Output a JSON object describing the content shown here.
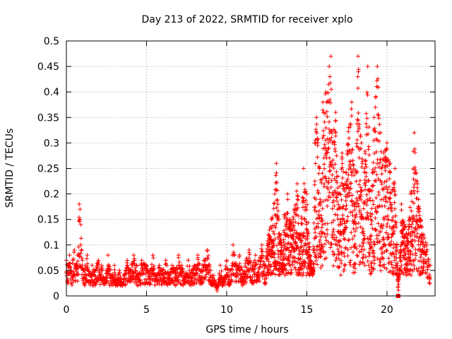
{
  "chart_data": {
    "type": "scatter",
    "title": "Day 213 of 2022, SRMTID for receiver xplo",
    "xlabel": "GPS time / hours",
    "ylabel": "SRMTID / TECUs",
    "xlim": [
      0,
      23
    ],
    "ylim": [
      0,
      0.5
    ],
    "xticks": [
      0,
      5,
      10,
      15,
      20
    ],
    "yticks": [
      0,
      0.05,
      0.1,
      0.15,
      0.2,
      0.25,
      0.3,
      0.35,
      0.4,
      0.45,
      0.5
    ],
    "xtick_labels": [
      "0",
      "5",
      "10",
      "15",
      "20"
    ],
    "ytick_labels": [
      "0",
      "0.05",
      "0.1",
      "0.15",
      "0.2",
      "0.25",
      "0.3",
      "0.35",
      "0.4",
      "0.45",
      "0.5"
    ],
    "grid": true,
    "marker": "plus",
    "color": "#ff0000",
    "envelope_note": "approximate upper envelope of the dense scatter, hours vs TECUs",
    "series": [
      {
        "name": "SRMTID",
        "points": [
          [
            0.0,
            0.07
          ],
          [
            0.1,
            0.06
          ],
          [
            0.2,
            0.08
          ],
          [
            0.3,
            0.05
          ],
          [
            0.4,
            0.07
          ],
          [
            0.5,
            0.09
          ],
          [
            0.6,
            0.06
          ],
          [
            0.7,
            0.08
          ],
          [
            0.8,
            0.18
          ],
          [
            0.85,
            0.17
          ],
          [
            0.9,
            0.14
          ],
          [
            1.0,
            0.07
          ],
          [
            1.1,
            0.05
          ],
          [
            1.2,
            0.06
          ],
          [
            1.3,
            0.08
          ],
          [
            1.5,
            0.04
          ],
          [
            1.6,
            0.06
          ],
          [
            1.8,
            0.05
          ],
          [
            2.0,
            0.07
          ],
          [
            2.1,
            0.04
          ],
          [
            2.2,
            0.06
          ],
          [
            2.4,
            0.03
          ],
          [
            2.5,
            0.05
          ],
          [
            2.6,
            0.08
          ],
          [
            2.8,
            0.04
          ],
          [
            3.0,
            0.06
          ],
          [
            3.1,
            0.03
          ],
          [
            3.3,
            0.05
          ],
          [
            3.5,
            0.02
          ],
          [
            3.6,
            0.04
          ],
          [
            3.8,
            0.07
          ],
          [
            4.0,
            0.05
          ],
          [
            4.2,
            0.08
          ],
          [
            4.4,
            0.06
          ],
          [
            4.5,
            0.04
          ],
          [
            4.7,
            0.07
          ],
          [
            5.0,
            0.06
          ],
          [
            5.2,
            0.05
          ],
          [
            5.4,
            0.08
          ],
          [
            5.6,
            0.04
          ],
          [
            5.8,
            0.06
          ],
          [
            6.0,
            0.05
          ],
          [
            6.2,
            0.07
          ],
          [
            6.4,
            0.04
          ],
          [
            6.6,
            0.06
          ],
          [
            6.8,
            0.05
          ],
          [
            7.0,
            0.08
          ],
          [
            7.2,
            0.06
          ],
          [
            7.4,
            0.04
          ],
          [
            7.6,
            0.07
          ],
          [
            7.8,
            0.05
          ],
          [
            8.0,
            0.06
          ],
          [
            8.2,
            0.08
          ],
          [
            8.4,
            0.05
          ],
          [
            8.6,
            0.07
          ],
          [
            8.8,
            0.09
          ],
          [
            9.0,
            0.05
          ],
          [
            9.2,
            0.04
          ],
          [
            9.4,
            0.01
          ],
          [
            9.6,
            0.06
          ],
          [
            9.8,
            0.03
          ],
          [
            10.0,
            0.07
          ],
          [
            10.2,
            0.05
          ],
          [
            10.4,
            0.1
          ],
          [
            10.6,
            0.06
          ],
          [
            10.8,
            0.08
          ],
          [
            11.0,
            0.05
          ],
          [
            11.2,
            0.07
          ],
          [
            11.4,
            0.09
          ],
          [
            11.6,
            0.06
          ],
          [
            11.8,
            0.08
          ],
          [
            12.0,
            0.07
          ],
          [
            12.2,
            0.1
          ],
          [
            12.4,
            0.06
          ],
          [
            12.6,
            0.12
          ],
          [
            12.8,
            0.15
          ],
          [
            13.0,
            0.2
          ],
          [
            13.1,
            0.26
          ],
          [
            13.2,
            0.18
          ],
          [
            13.4,
            0.12
          ],
          [
            13.5,
            0.07
          ],
          [
            13.6,
            0.16
          ],
          [
            13.8,
            0.2
          ],
          [
            14.0,
            0.14
          ],
          [
            14.2,
            0.17
          ],
          [
            14.4,
            0.22
          ],
          [
            14.6,
            0.12
          ],
          [
            14.8,
            0.25
          ],
          [
            15.0,
            0.2
          ],
          [
            15.2,
            0.08
          ],
          [
            15.4,
            0.05
          ],
          [
            15.5,
            0.3
          ],
          [
            15.6,
            0.35
          ],
          [
            15.8,
            0.25
          ],
          [
            16.0,
            0.38
          ],
          [
            16.2,
            0.4
          ],
          [
            16.4,
            0.45
          ],
          [
            16.5,
            0.47
          ],
          [
            16.6,
            0.3
          ],
          [
            16.8,
            0.36
          ],
          [
            17.0,
            0.2
          ],
          [
            17.2,
            0.28
          ],
          [
            17.4,
            0.22
          ],
          [
            17.6,
            0.33
          ],
          [
            17.8,
            0.38
          ],
          [
            18.0,
            0.18
          ],
          [
            18.2,
            0.47
          ],
          [
            18.4,
            0.3
          ],
          [
            18.6,
            0.25
          ],
          [
            18.8,
            0.45
          ],
          [
            19.0,
            0.15
          ],
          [
            19.2,
            0.35
          ],
          [
            19.4,
            0.45
          ],
          [
            19.6,
            0.32
          ],
          [
            19.8,
            0.28
          ],
          [
            20.0,
            0.3
          ],
          [
            20.2,
            0.26
          ],
          [
            20.4,
            0.22
          ],
          [
            20.5,
            0.25
          ],
          [
            20.7,
            0.0
          ],
          [
            20.9,
            0.18
          ],
          [
            21.1,
            0.14
          ],
          [
            21.3,
            0.12
          ],
          [
            21.5,
            0.2
          ],
          [
            21.7,
            0.32
          ],
          [
            21.9,
            0.22
          ],
          [
            22.1,
            0.15
          ],
          [
            22.3,
            0.12
          ],
          [
            22.5,
            0.1
          ],
          [
            22.7,
            0.06
          ]
        ]
      }
    ]
  }
}
